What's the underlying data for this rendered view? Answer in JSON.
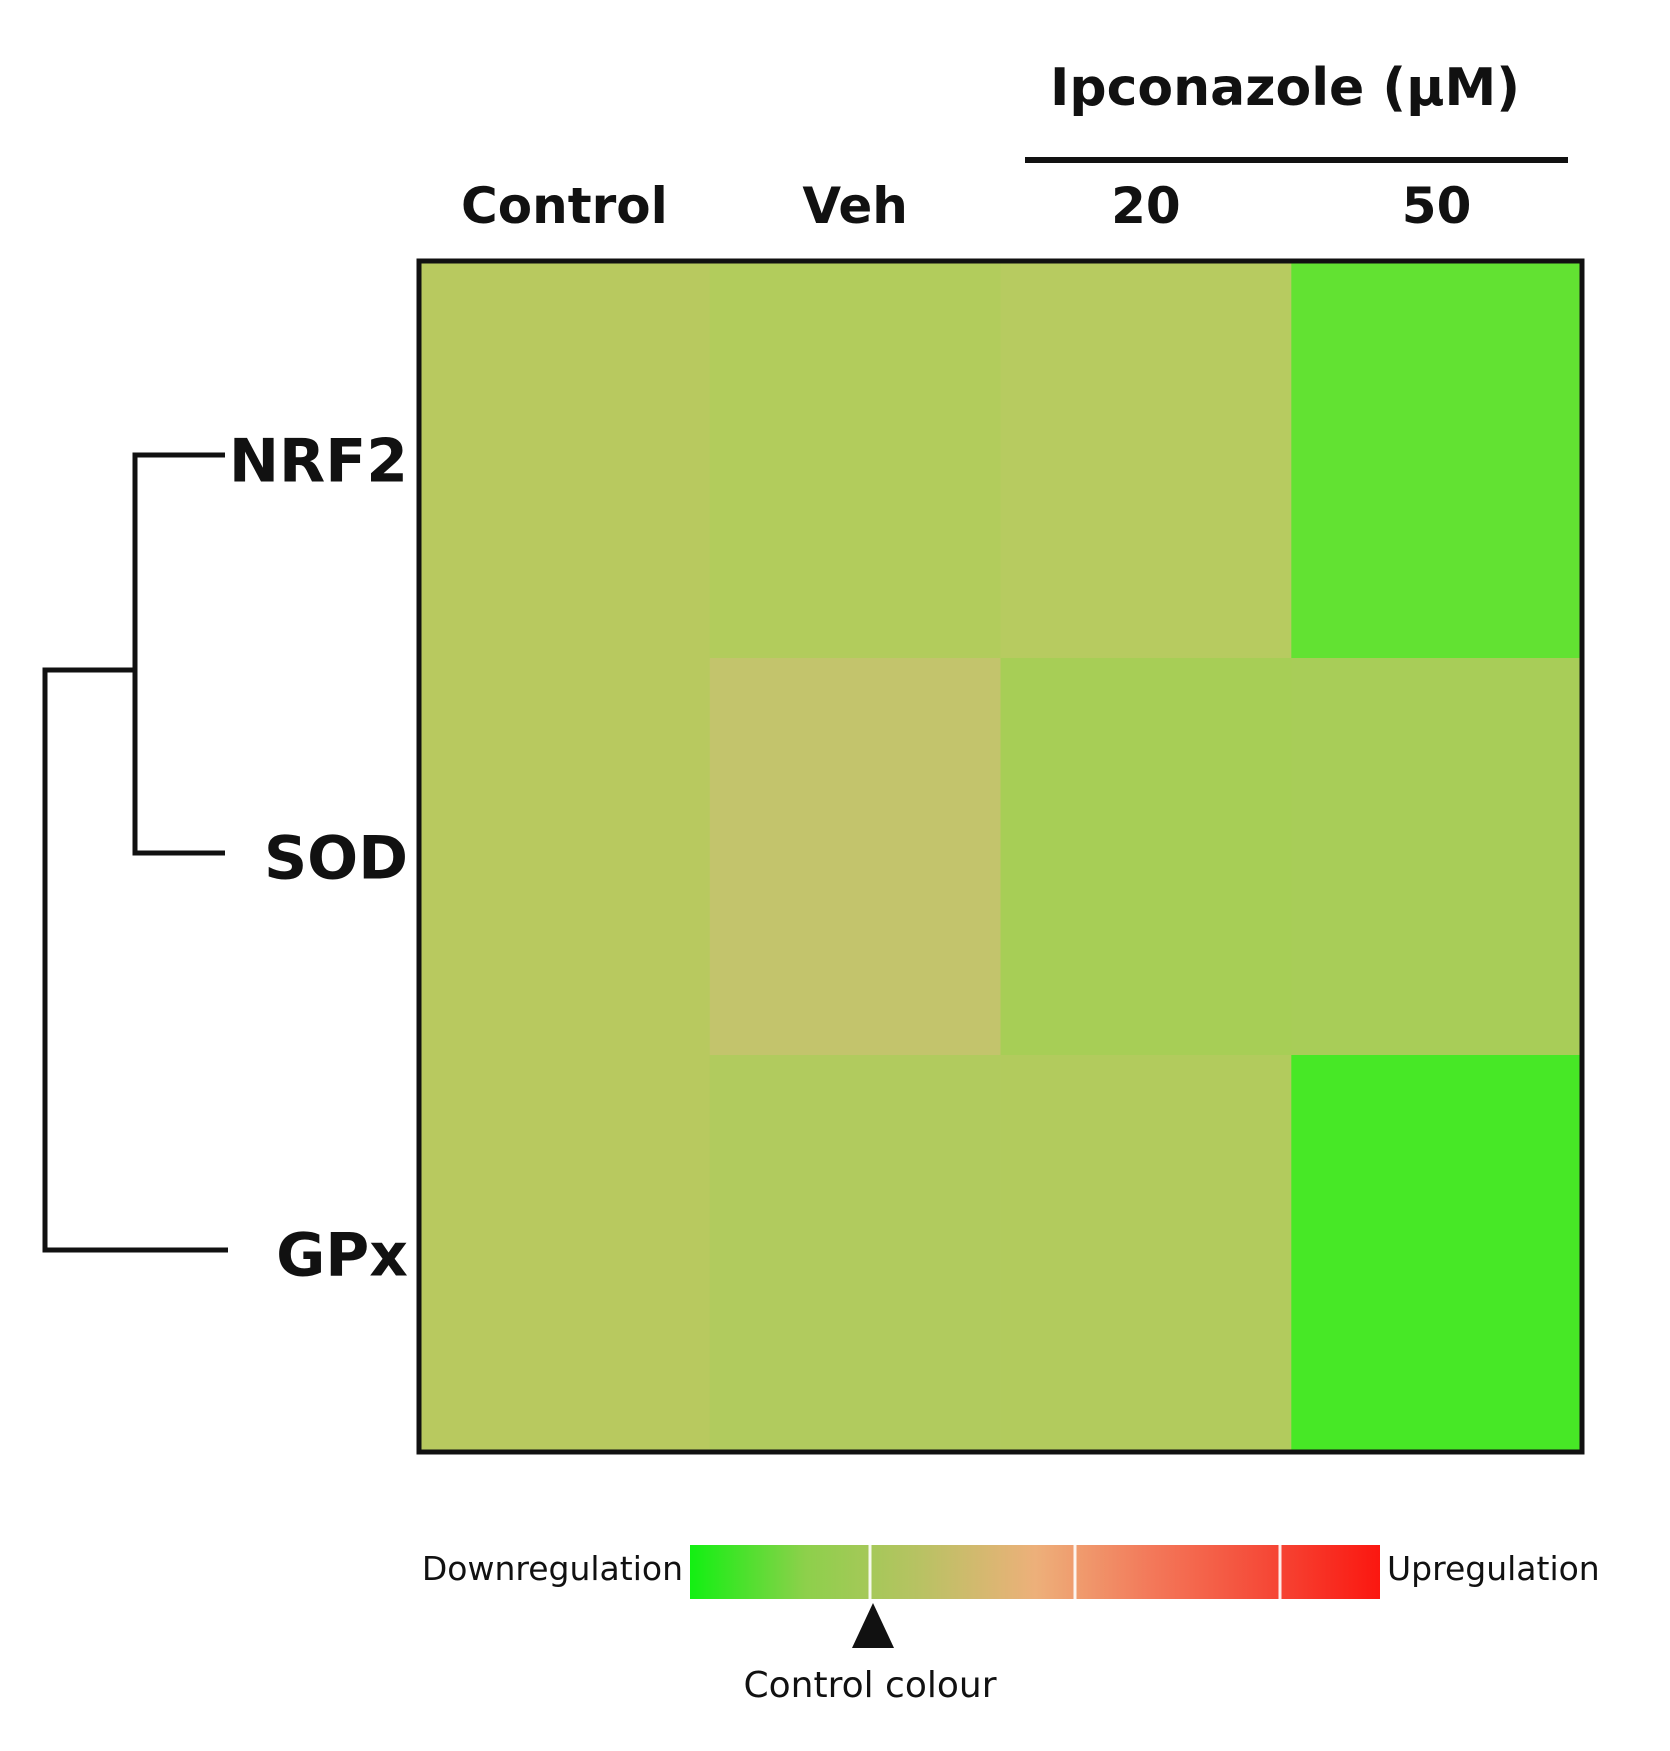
{
  "chart_data": {
    "type": "heatmap",
    "column_group_title": "Ipconazole (µM)",
    "columns": [
      "Control",
      "Veh",
      "20",
      "50"
    ],
    "grouped_columns": [
      "20",
      "50"
    ],
    "rows": [
      "NRF2",
      "SOD",
      "GPx"
    ],
    "cell_colors": [
      [
        "#b8c95f",
        "#b2cc5c",
        "#b7cb60",
        "#62e232"
      ],
      [
        "#b8c95f",
        "#c3c46c",
        "#a7ce56",
        "#a8cd58"
      ],
      [
        "#b8c95f",
        "#b1cb5e",
        "#b2cb5d",
        "#47e826"
      ]
    ],
    "dendrogram": {
      "clusters": [
        [
          "NRF2",
          "SOD"
        ],
        "GPx"
      ]
    },
    "legend": {
      "left_label": "Downregulation",
      "right_label": "Upregulation",
      "marker_label": "Control colour",
      "gradient_colors": [
        "#12f012",
        "#8dd04b",
        "#b8c263",
        "#edb07a",
        "#f3795a",
        "#f54a38",
        "#fb1710"
      ]
    }
  }
}
